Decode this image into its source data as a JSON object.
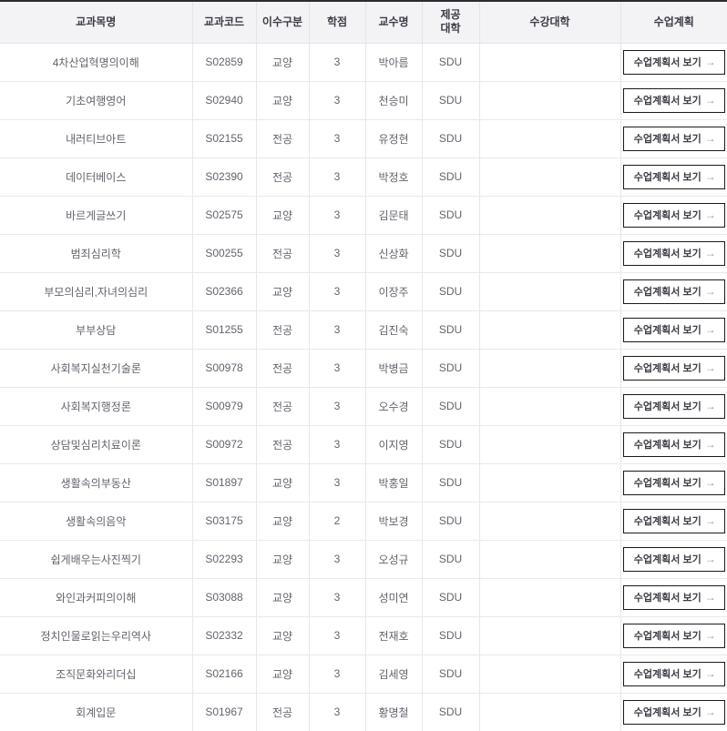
{
  "table": {
    "columns": [
      {
        "key": "name",
        "label": "교과목명"
      },
      {
        "key": "code",
        "label": "교과코드"
      },
      {
        "key": "type",
        "label": "이수구분"
      },
      {
        "key": "credits",
        "label": "학점"
      },
      {
        "key": "professor",
        "label": "교수명"
      },
      {
        "key": "university",
        "label": "제공\n대학"
      },
      {
        "key": "enrollment",
        "label": "수강대학"
      },
      {
        "key": "plan",
        "label": "수업계획"
      }
    ],
    "action_button": {
      "label": "수업계획서 보기",
      "arrow": "→"
    },
    "rows": [
      {
        "name": "4차산업혁명의이해",
        "code": "S02859",
        "type": "교양",
        "credits": "3",
        "professor": "박아름",
        "university": "SDU",
        "enrollment": ""
      },
      {
        "name": "기초여행영어",
        "code": "S02940",
        "type": "교양",
        "credits": "3",
        "professor": "천승미",
        "university": "SDU",
        "enrollment": ""
      },
      {
        "name": "내러티브아트",
        "code": "S02155",
        "type": "전공",
        "credits": "3",
        "professor": "유정현",
        "university": "SDU",
        "enrollment": ""
      },
      {
        "name": "데이터베이스",
        "code": "S02390",
        "type": "전공",
        "credits": "3",
        "professor": "박정호",
        "university": "SDU",
        "enrollment": ""
      },
      {
        "name": "바르게글쓰기",
        "code": "S02575",
        "type": "교양",
        "credits": "3",
        "professor": "김문태",
        "university": "SDU",
        "enrollment": ""
      },
      {
        "name": "범죄심리학",
        "code": "S00255",
        "type": "전공",
        "credits": "3",
        "professor": "신상화",
        "university": "SDU",
        "enrollment": ""
      },
      {
        "name": "부모의심리,자녀의심리",
        "code": "S02366",
        "type": "교양",
        "credits": "3",
        "professor": "이장주",
        "university": "SDU",
        "enrollment": ""
      },
      {
        "name": "부부상담",
        "code": "S01255",
        "type": "전공",
        "credits": "3",
        "professor": "김진숙",
        "university": "SDU",
        "enrollment": ""
      },
      {
        "name": "사회복지실천기술론",
        "code": "S00978",
        "type": "전공",
        "credits": "3",
        "professor": "박병금",
        "university": "SDU",
        "enrollment": ""
      },
      {
        "name": "사회복지행정론",
        "code": "S00979",
        "type": "전공",
        "credits": "3",
        "professor": "오수경",
        "university": "SDU",
        "enrollment": ""
      },
      {
        "name": "상담및심리치료이론",
        "code": "S00972",
        "type": "전공",
        "credits": "3",
        "professor": "이지영",
        "university": "SDU",
        "enrollment": ""
      },
      {
        "name": "생활속의부동산",
        "code": "S01897",
        "type": "교양",
        "credits": "3",
        "professor": "박홍일",
        "university": "SDU",
        "enrollment": ""
      },
      {
        "name": "생활속의음악",
        "code": "S03175",
        "type": "교양",
        "credits": "2",
        "professor": "박보경",
        "university": "SDU",
        "enrollment": ""
      },
      {
        "name": "쉽게배우는사진찍기",
        "code": "S02293",
        "type": "교양",
        "credits": "3",
        "professor": "오성규",
        "university": "SDU",
        "enrollment": ""
      },
      {
        "name": "와인과커피의이해",
        "code": "S03088",
        "type": "교양",
        "credits": "3",
        "professor": "성미연",
        "university": "SDU",
        "enrollment": ""
      },
      {
        "name": "정치인물로읽는우리역사",
        "code": "S02332",
        "type": "교양",
        "credits": "3",
        "professor": "전재호",
        "university": "SDU",
        "enrollment": ""
      },
      {
        "name": "조직문화와리더십",
        "code": "S02166",
        "type": "교양",
        "credits": "3",
        "professor": "김세영",
        "university": "SDU",
        "enrollment": ""
      },
      {
        "name": "회계입문",
        "code": "S01967",
        "type": "전공",
        "credits": "3",
        "professor": "황명철",
        "university": "SDU",
        "enrollment": ""
      }
    ],
    "colors": {
      "top_border": "#2b2b33",
      "header_bg": "#f3f3f6",
      "header_text": "#3c3c46",
      "body_text": "#63636e",
      "cell_border": "#e6e6ee",
      "button_border": "#1a1a1a",
      "button_arrow": "#9a9aa4"
    }
  }
}
